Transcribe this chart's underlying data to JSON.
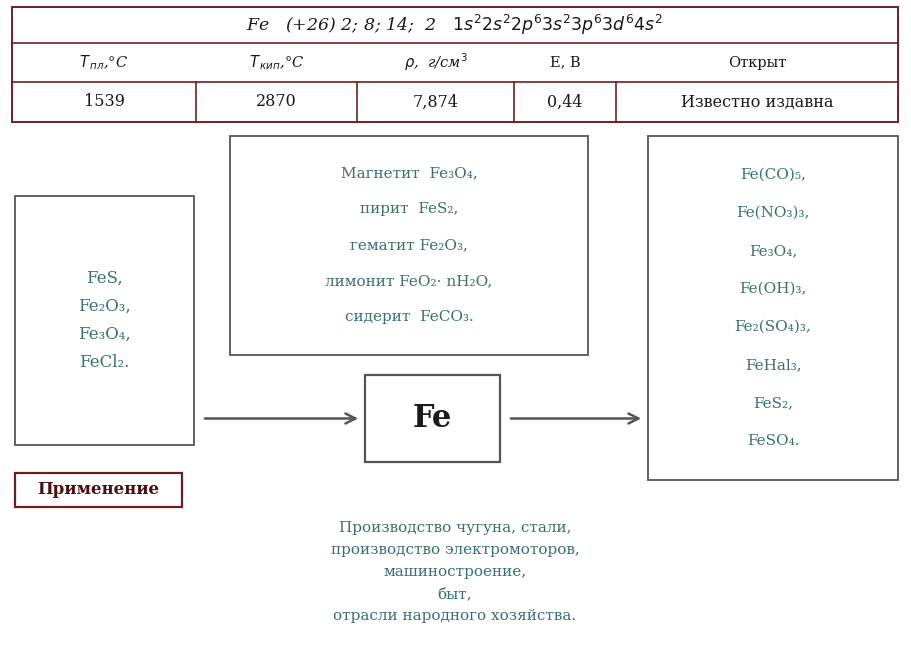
{
  "bg_color": "#ffffff",
  "table_border_color": "#6b2020",
  "box_border_color": "#555555",
  "fe_box_border_color": "#555555",
  "text_color": "#1a1a1a",
  "teal_color": "#3a7070",
  "arrow_color": "#555555",
  "primenenie_border": "#6b2020",
  "primenenie_text_color": "#4a1010",
  "app_text_color": "#3a7070",
  "table": {
    "col_values": [
      "1539",
      "2870",
      "7,874",
      "0,44",
      "Известно издавна"
    ]
  },
  "left_box": {
    "lines": [
      "FeS,",
      "Fe₂O₃,",
      "Fe₃O₄,",
      "FeCl₂."
    ]
  },
  "middle_top_box": {
    "lines": [
      "Магнетит  Fe₃O₄,",
      "пирит  FeS₂,",
      "гематит Fe₂O₃,",
      "лимонит FeO₂· nH₂O,",
      "сидерит  FeCO₃."
    ]
  },
  "right_box": {
    "lines": [
      "Fe(CO)₅,",
      "Fe(NO₃)₃,",
      "Fe₃O₄,",
      "Fe(OH)₃,",
      "Fe₂(SO₄)₃,",
      "FeHal₃,",
      "FeS₂,",
      "FeSO₄."
    ]
  },
  "fe_label": "Fe",
  "primenenie_label": "Применение",
  "application_lines": [
    "Производство чугуна, стали,",
    "производство электромоторов,",
    "машиностроение,",
    "быт,",
    "отрасли народного хозяйства."
  ]
}
